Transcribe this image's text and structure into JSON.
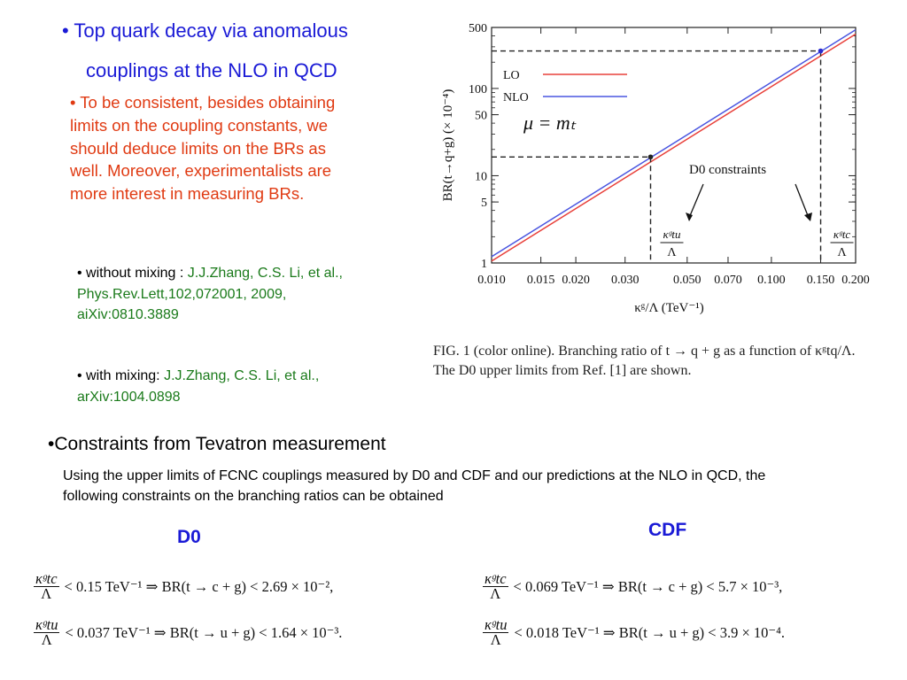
{
  "left": {
    "title_line1": "•  Top quark decay via anomalous",
    "title_line2": "couplings at the NLO in QCD",
    "paragraph": "•  To be consistent, besides obtaining limits on the coupling constants, we should deduce limits on the BRs as well. Moreover, experimentalists are more interest in measuring BRs.",
    "ref1": {
      "label": "• without mixing : ",
      "citation": "J.J.Zhang, C.S. Li, et al., Phys.Rev.Lett,102,072001,  2009, aiXiv:0810.3889"
    },
    "ref2": {
      "label": "• with mixing: ",
      "citation": "J.J.Zhang, C.S. Li, et al.,  arXiv:1004.0898"
    }
  },
  "figure": {
    "ylabel": "BR(t→q+g) (× 10⁻⁴)",
    "xlabel": "κᵍ/Λ (TeV⁻¹)",
    "legend": [
      {
        "name": "LO",
        "color": "#e8403a"
      },
      {
        "name": "NLO",
        "color": "#4a56e0"
      }
    ],
    "mu_label": "μ = mₜ",
    "annotation": "D0 constraints",
    "marker_tu": {
      "num": "κᵍtu",
      "den": "Λ"
    },
    "marker_tc": {
      "num": "κᵍtc",
      "den": "Λ"
    },
    "caption": "FIG. 1 (color online).   Branching ratio of t → q + g as a function of κᵍtq/Λ. The D0 upper limits from Ref. [1] are shown."
  },
  "chart_data": {
    "type": "line",
    "title": "",
    "xlabel": "κᵍ/Λ (TeV⁻¹)",
    "ylabel": "BR(t→q+g) (× 10⁻⁴)",
    "xscale": "log",
    "yscale": "log",
    "xlim": [
      0.01,
      0.2
    ],
    "ylim": [
      1,
      500
    ],
    "x_ticks": [
      "0.010",
      "0.015",
      "0.020",
      "0.030",
      "0.050",
      "0.070",
      "0.100",
      "0.150",
      "0.200"
    ],
    "x_tick_values": [
      0.01,
      0.015,
      0.02,
      0.03,
      0.05,
      0.07,
      0.1,
      0.15,
      0.2
    ],
    "y_ticks": [
      "1",
      "5",
      "10",
      "50",
      "100",
      "500"
    ],
    "y_tick_values": [
      1,
      5,
      10,
      50,
      100,
      500
    ],
    "series": [
      {
        "name": "LO",
        "x": [
          0.01,
          0.2
        ],
        "y": [
          1.05,
          420
        ],
        "color": "#e8403a"
      },
      {
        "name": "NLO",
        "x": [
          0.01,
          0.2
        ],
        "y": [
          1.18,
          470
        ],
        "color": "#4a56e0"
      }
    ],
    "constraints": [
      {
        "x": 0.037,
        "y": 16.4
      },
      {
        "x": 0.15,
        "y": 269
      }
    ],
    "legend_position": "top-left",
    "grid": false
  },
  "tevatron": {
    "heading": "•Constraints from Tevatron measurement",
    "description": "Using the upper limits of FCNC couplings measured by D0 and CDF and our predictions at the NLO in QCD, the following constraints on the branching ratios can be obtained",
    "d0_label": "D0",
    "cdf_label": "CDF",
    "d0_eq1": {
      "frac_num": "κᵍtc",
      "frac_den": "Λ",
      "rest": "< 0.15 TeV⁻¹  ⇒  BR(t → c + g) < 2.69 × 10⁻²,"
    },
    "d0_eq2": {
      "frac_num": "κᵍtu",
      "frac_den": "Λ",
      "rest": "< 0.037 TeV⁻¹  ⇒  BR(t → u + g) < 1.64 × 10⁻³."
    },
    "cdf_eq1": {
      "frac_num": "κᵍtc",
      "frac_den": "Λ",
      "rest": "< 0.069 TeV⁻¹  ⇒  BR(t → c + g) < 5.7 × 10⁻³,"
    },
    "cdf_eq2": {
      "frac_num": "κᵍtu",
      "frac_den": "Λ",
      "rest": "< 0.018 TeV⁻¹  ⇒  BR(t → u + g) < 3.9 × 10⁻⁴."
    }
  }
}
